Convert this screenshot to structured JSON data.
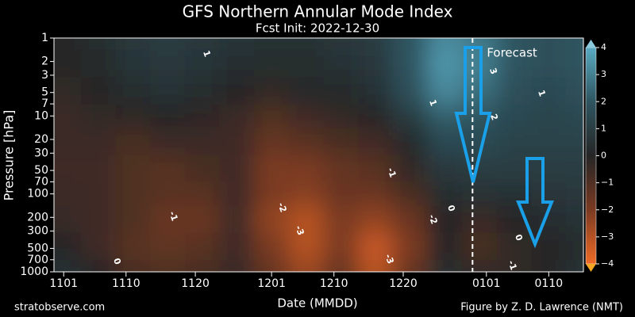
{
  "chart_data": {
    "type": "contour",
    "title": "GFS Northern Annular Mode Index",
    "subtitle": "Fcst Init: 2022-12-30",
    "xlabel": "Date (MMDD)",
    "ylabel": "Pressure [hPa]",
    "footer_left": "stratobserve.com",
    "footer_right": "Figure by Z. D. Lawrence (NMT)",
    "forecast_label": "Forecast",
    "forecast_x": 59,
    "x": [
      0,
      5,
      10,
      15,
      20,
      25,
      30,
      35,
      40,
      45,
      50,
      55,
      60,
      65,
      70,
      75
    ],
    "levels": [
      1,
      2,
      5,
      10,
      20,
      50,
      100,
      200,
      500,
      1000
    ],
    "z": [
      [
        0,
        0.3,
        0.8,
        1,
        0.8,
        0.6,
        0.5,
        0.5,
        0.8,
        1,
        2,
        3.2,
        2.8,
        2,
        1.8,
        2
      ],
      [
        0,
        0.2,
        0.6,
        0.8,
        0.6,
        0.4,
        0.3,
        0.3,
        0.5,
        0.8,
        2,
        3.5,
        3,
        2,
        1.8,
        2
      ],
      [
        -0.3,
        0,
        0.3,
        0.5,
        0.3,
        0,
        -0.3,
        0.2,
        0.2,
        0.5,
        1.8,
        3.2,
        2.6,
        1.8,
        1.5,
        1.8
      ],
      [
        -0.5,
        -0.3,
        -0.2,
        0,
        -0.2,
        -0.5,
        -1,
        -0.6,
        -0.3,
        0,
        1,
        2.2,
        2,
        1.5,
        1.3,
        1.5
      ],
      [
        -0.5,
        -0.5,
        -0.8,
        -0.5,
        -0.5,
        -0.6,
        -1.5,
        -1.2,
        -0.8,
        -0.6,
        0.2,
        1.5,
        1.6,
        1.2,
        1.2,
        1.2
      ],
      [
        -0.6,
        -0.6,
        -1,
        -1.2,
        -0.8,
        -0.6,
        -2,
        -2,
        -1.5,
        -1.2,
        -0.3,
        0.8,
        1,
        1,
        1,
        1
      ],
      [
        -0.5,
        -0.6,
        -1,
        -1.2,
        -1.2,
        -0.6,
        -2,
        -2.2,
        -1.6,
        -1.6,
        -0.8,
        0.3,
        0.5,
        0.5,
        0.7,
        0.8
      ],
      [
        -0.4,
        -0.6,
        -1,
        -1.6,
        -1.6,
        -0.6,
        -2.4,
        -3,
        -2,
        -2.4,
        -1.6,
        0,
        -0.5,
        0,
        0.4,
        0.5
      ],
      [
        0,
        -0.6,
        -1.2,
        -1.4,
        -1.2,
        -0.6,
        -2,
        -3,
        -2,
        -3.3,
        -2,
        0,
        -0.8,
        -0.3,
        0,
        0.3
      ],
      [
        0.5,
        0,
        -0.8,
        -1,
        -0.8,
        -0.4,
        -1.5,
        -2.5,
        -1.5,
        -3,
        -1.5,
        0.3,
        -0.3,
        -0.3,
        0,
        0.5
      ]
    ],
    "xlim": [
      -1.4,
      75
    ],
    "xticks": [
      {
        "value": 0,
        "label": "1101"
      },
      {
        "value": 9,
        "label": "1110"
      },
      {
        "value": 19,
        "label": "1120"
      },
      {
        "value": 30,
        "label": "1201"
      },
      {
        "value": 39,
        "label": "1210"
      },
      {
        "value": 49,
        "label": "1220"
      },
      {
        "value": 61,
        "label": "0101"
      },
      {
        "value": 70,
        "label": "0110"
      }
    ],
    "ylim": [
      1000,
      1
    ],
    "yscale": "log",
    "yticks": [
      1,
      2,
      3,
      5,
      7,
      10,
      20,
      30,
      50,
      70,
      100,
      200,
      300,
      500,
      700,
      1000
    ],
    "clim": [
      -4,
      4
    ],
    "cticks": [
      4,
      3,
      2,
      1,
      0,
      {
        "value": -1,
        "label": "−1"
      },
      {
        "value": -2,
        "label": "−2"
      },
      {
        "value": -3,
        "label": "−3"
      },
      {
        "value": -4,
        "label": "−4"
      }
    ],
    "colormap": [
      "#ef6a26",
      "#7a3a22",
      "#262626",
      "#2e5560",
      "#5aaac2"
    ],
    "contour_labels": [
      "1",
      "3",
      "1",
      "2",
      "1",
      "-1",
      "0",
      "-2",
      "-1",
      "-3",
      "-2",
      "0",
      "-3",
      "0",
      "-1"
    ]
  }
}
